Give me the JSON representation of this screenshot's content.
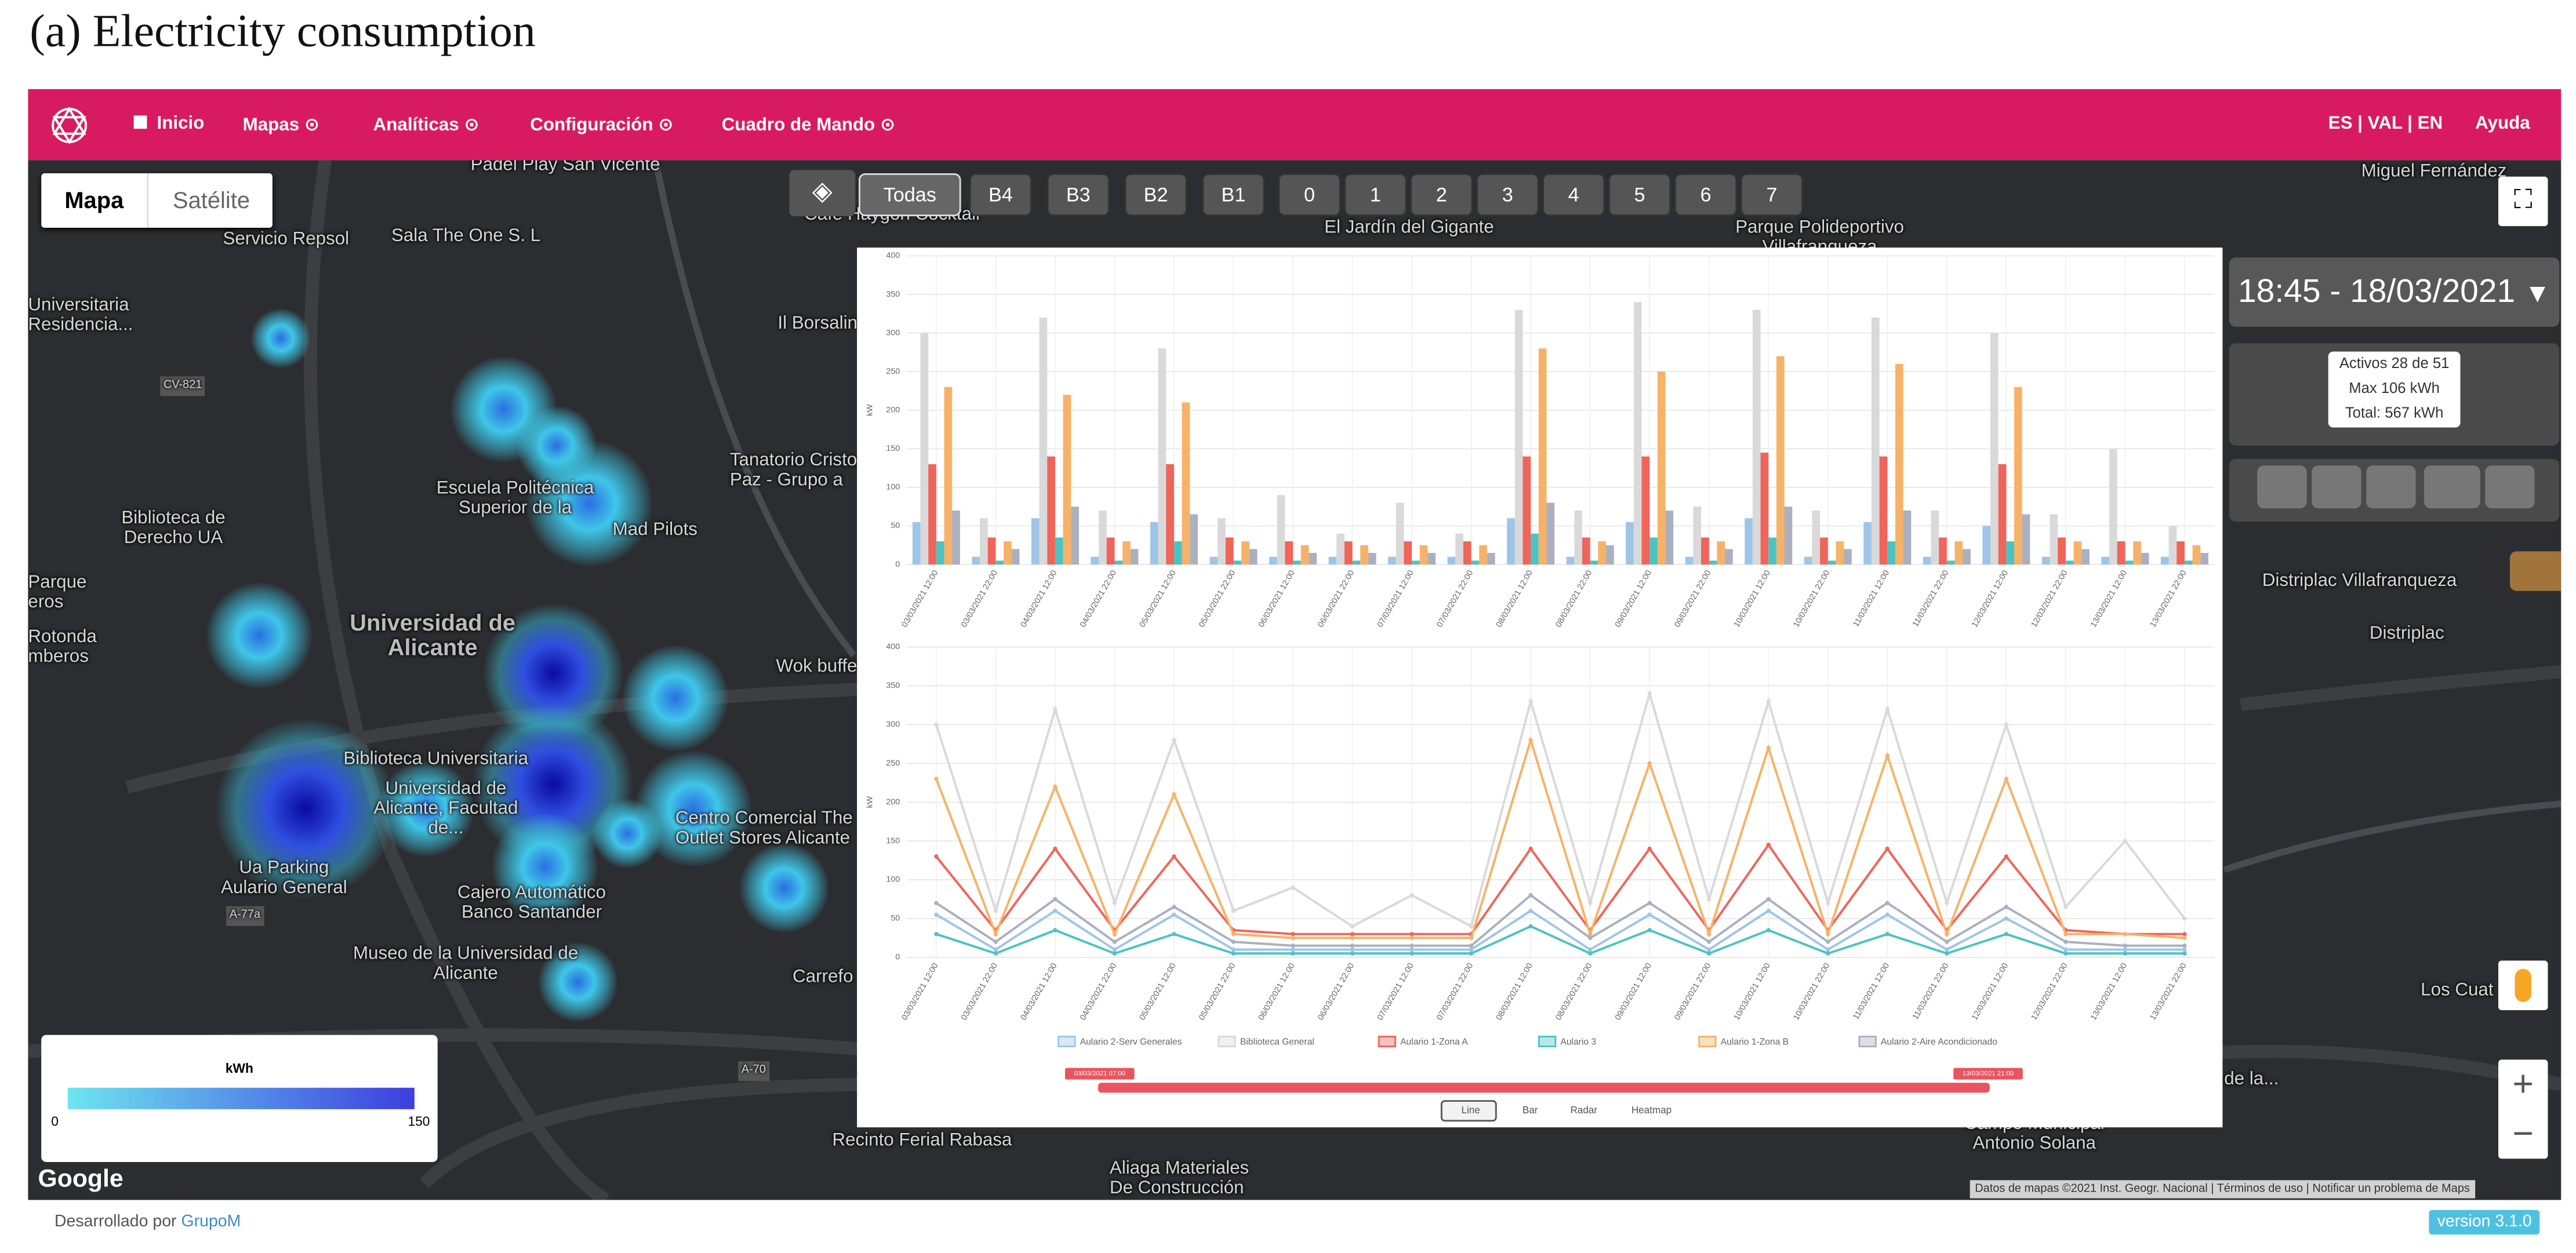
{
  "figure_title": "(a) Electricity consumption",
  "navbar": {
    "items": [
      "Inicio",
      "Mapas",
      "Analíticas",
      "Configuración",
      "Cuadro de Mando"
    ],
    "languages": "ES | VAL | EN",
    "help": "Ayuda"
  },
  "map_type": [
    "Mapa",
    "Satélite"
  ],
  "floors": [
    "Todas",
    "B4",
    "B3",
    "B2",
    "B1",
    "0",
    "1",
    "2",
    "3",
    "4",
    "5",
    "6",
    "7"
  ],
  "map": {
    "labels": [
      "Padel Play San Vicente",
      "Café Haygon Cocktail",
      "Sala The One S. L",
      "Universitaria Residencia...",
      "CV-821",
      "Il Borsalin",
      "Escuela Politécnica Superior de la",
      "Tanatorio Cristo La Paz - Grupo a",
      "Biblioteca de Derecho UA",
      "Mad Pilots",
      "Parque eros",
      "Universidad de Alicante",
      "Rotonda mberos",
      "Wok buffe",
      "Biblioteca Universitaria",
      "Universidad de Alicante, Facultad de...",
      "Centro Comercial The Outlet Stores Alicante",
      "Ua Parking Aulario General",
      "Cajero Automático Banco Santander",
      "Museo de la Universidad de Alicante",
      "Carrefo",
      "Recinto Ferial Rabasa",
      "Aliaga Materiales De Construcción",
      "El Jardín del Gigante",
      "Parque Polideportivo Villafranqueza",
      "Miguel Fernández",
      "Distriplac Villafranqueza",
      "Distriplac",
      "Los Cuat",
      "Campo Municipal Antonio Solana",
      "de la...",
      "A-70",
      "A-77a",
      "Servicio Repsol"
    ],
    "google": "Google",
    "attribution": [
      "Datos de mapas ©2021 Inst. Geogr. Nacional",
      "Términos de uso",
      "Notificar un problema de Maps"
    ]
  },
  "legend_box": {
    "unit": "kWh",
    "min": "0",
    "max": "150"
  },
  "time": "18:45 - 18/03/2021",
  "summary": [
    "Activos 28 de 51",
    "Max 106 kWh",
    "Total: 567 kWh"
  ],
  "chart_controls": [
    "Line",
    "Bar",
    "Radar",
    "Heatmap"
  ],
  "range_slider": [
    "03/03/2021 07:00",
    "13/03/2021 21:00"
  ],
  "footer": {
    "text": "Desarrollado por",
    "link": "GrupoM",
    "version": "version 3.1.0"
  },
  "chart_data": [
    {
      "type": "bar",
      "y_label": "kW",
      "ylim": [
        0,
        400
      ],
      "yticks": [
        0,
        50,
        100,
        150,
        200,
        250,
        300,
        350,
        400
      ],
      "grid": true,
      "categories": [
        "03/03/2021 12:00",
        "03/03/2021 22:00",
        "04/03/2021 12:00",
        "04/03/2021 22:00",
        "05/03/2021 12:00",
        "05/03/2021 22:00",
        "06/03/2021 12:00",
        "06/03/2021 22:00",
        "07/03/2021 12:00",
        "07/03/2021 22:00",
        "08/03/2021 12:00",
        "08/03/2021 22:00",
        "09/03/2021 12:00",
        "09/03/2021 22:00",
        "10/03/2021 12:00",
        "10/03/2021 22:00",
        "11/03/2021 12:00",
        "11/03/2021 22:00",
        "12/03/2021 12:00",
        "12/03/2021 22:00",
        "13/03/2021 12:00",
        "13/03/2021 22:00"
      ],
      "series": [
        {
          "color": "#9ec5e8",
          "values": [
            55,
            10,
            60,
            10,
            55,
            10,
            10,
            10,
            10,
            10,
            60,
            10,
            55,
            10,
            60,
            10,
            55,
            10,
            50,
            10,
            10,
            10
          ]
        },
        {
          "color": "#d9d9d9",
          "values": [
            300,
            60,
            320,
            70,
            280,
            60,
            90,
            40,
            80,
            40,
            330,
            70,
            340,
            75,
            330,
            70,
            320,
            70,
            300,
            65,
            150,
            50
          ]
        },
        {
          "color": "#f0645a",
          "values": [
            130,
            35,
            140,
            35,
            130,
            35,
            30,
            30,
            30,
            30,
            140,
            35,
            140,
            35,
            145,
            35,
            140,
            35,
            130,
            35,
            30,
            30
          ]
        },
        {
          "color": "#4cc3c3",
          "values": [
            30,
            5,
            35,
            5,
            30,
            5,
            5,
            5,
            5,
            5,
            40,
            5,
            35,
            5,
            35,
            5,
            30,
            5,
            30,
            5,
            5,
            5
          ]
        },
        {
          "color": "#f7b268",
          "values": [
            230,
            30,
            220,
            30,
            210,
            30,
            25,
            25,
            25,
            25,
            280,
            30,
            250,
            30,
            270,
            30,
            260,
            30,
            230,
            30,
            30,
            25
          ]
        },
        {
          "color": "#aab0c0",
          "values": [
            70,
            20,
            75,
            20,
            65,
            20,
            15,
            15,
            15,
            15,
            80,
            25,
            70,
            20,
            75,
            20,
            70,
            20,
            65,
            20,
            15,
            15
          ]
        }
      ]
    },
    {
      "type": "line",
      "y_label": "kW",
      "ylim": [
        0,
        400
      ],
      "yticks": [
        0,
        50,
        100,
        150,
        200,
        250,
        300,
        350,
        400
      ],
      "grid": true,
      "categories": [
        "03/03/2021 12:00",
        "03/03/2021 22:00",
        "04/03/2021 12:00",
        "04/03/2021 22:00",
        "05/03/2021 12:00",
        "05/03/2021 22:00",
        "06/03/2021 12:00",
        "06/03/2021 22:00",
        "07/03/2021 12:00",
        "07/03/2021 22:00",
        "08/03/2021 12:00",
        "08/03/2021 22:00",
        "09/03/2021 12:00",
        "09/03/2021 22:00",
        "10/03/2021 12:00",
        "10/03/2021 22:00",
        "11/03/2021 12:00",
        "11/03/2021 22:00",
        "12/03/2021 12:00",
        "12/03/2021 22:00",
        "13/03/2021 12:00",
        "13/03/2021 22:00"
      ],
      "series": [
        {
          "name": "Aulario 2-Serv Generales",
          "color": "#9ec5e8",
          "values": [
            55,
            10,
            60,
            10,
            55,
            10,
            10,
            10,
            10,
            10,
            60,
            10,
            55,
            10,
            60,
            10,
            55,
            10,
            50,
            10,
            10,
            10
          ]
        },
        {
          "name": "Biblioteca General",
          "color": "#d9d9d9",
          "values": [
            300,
            60,
            320,
            70,
            280,
            60,
            90,
            40,
            80,
            40,
            330,
            70,
            340,
            75,
            330,
            70,
            320,
            70,
            300,
            65,
            150,
            50
          ]
        },
        {
          "name": "Aulario 1-Zona A",
          "color": "#f0645a",
          "values": [
            130,
            35,
            140,
            35,
            130,
            35,
            30,
            30,
            30,
            30,
            140,
            35,
            140,
            35,
            145,
            35,
            140,
            35,
            130,
            35,
            30,
            30
          ]
        },
        {
          "name": "Aulario 3",
          "color": "#4cc3c3",
          "values": [
            30,
            5,
            35,
            5,
            30,
            5,
            5,
            5,
            5,
            5,
            40,
            5,
            35,
            5,
            35,
            5,
            30,
            5,
            30,
            5,
            5,
            5
          ]
        },
        {
          "name": "Aulario 1-Zona B",
          "color": "#f7b268",
          "values": [
            230,
            30,
            220,
            30,
            210,
            30,
            25,
            25,
            25,
            25,
            280,
            30,
            250,
            30,
            270,
            30,
            260,
            30,
            230,
            30,
            30,
            25
          ]
        },
        {
          "name": "Aulario 2-Aire Acondicionado",
          "color": "#aab0c0",
          "values": [
            70,
            20,
            75,
            20,
            65,
            20,
            15,
            15,
            15,
            15,
            80,
            25,
            70,
            20,
            75,
            20,
            70,
            20,
            65,
            20,
            15,
            15
          ]
        }
      ]
    }
  ]
}
